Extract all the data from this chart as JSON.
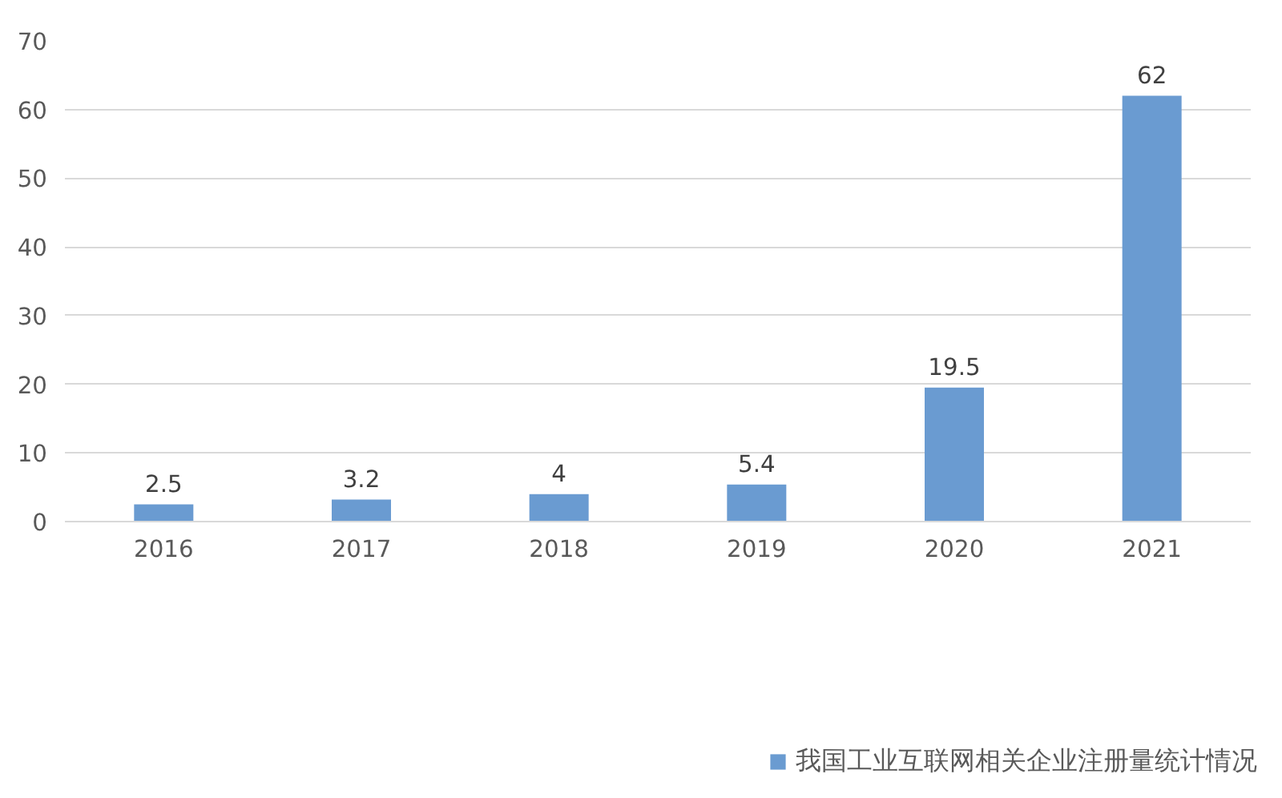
{
  "chart_data": {
    "type": "bar",
    "categories": [
      "2016",
      "2017",
      "2018",
      "2019",
      "2020",
      "2021"
    ],
    "series": [
      {
        "name": "我国工业互联网相关企业注册量统计情况",
        "color": "#6a9bd1",
        "values": [
          2.5,
          3.2,
          4,
          5.4,
          19.5,
          62
        ]
      }
    ],
    "ylim": [
      0,
      70
    ],
    "yticks": [
      0,
      10,
      20,
      30,
      40,
      50,
      60,
      70
    ],
    "grid": "y",
    "legend": "bottom",
    "data_labels": true
  }
}
